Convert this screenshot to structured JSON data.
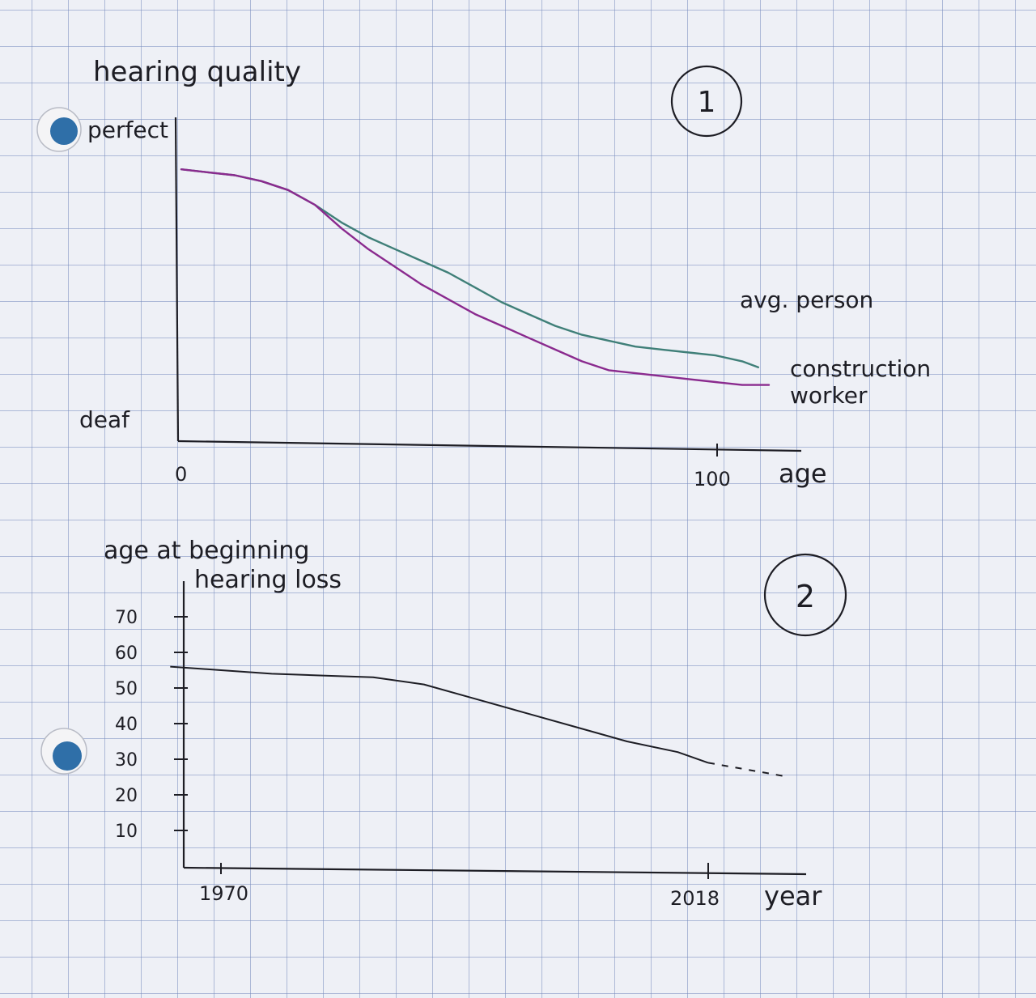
{
  "colors": {
    "avg_person": "#3f7f78",
    "construction_worker": "#8a2a8e",
    "ink": "#1d1d24",
    "hole": "#2f6fa8"
  },
  "chart_data": [
    {
      "type": "line",
      "badge": "1",
      "title": "hearing quality",
      "xlabel": "age",
      "ylabel": "hearing quality",
      "y_high_label": "perfect",
      "y_low_label": "deaf",
      "x_ticks": [
        "0",
        "100"
      ],
      "xlim": [
        0,
        110
      ],
      "ylim": [
        0,
        100
      ],
      "grid": true,
      "legend": "right",
      "series": [
        {
          "name": "avg. person",
          "color": "#3f7f78",
          "x": [
            0,
            5,
            10,
            15,
            20,
            25,
            30,
            35,
            40,
            45,
            50,
            55,
            60,
            65,
            70,
            75,
            80,
            85,
            90,
            95,
            100,
            105,
            108
          ],
          "y": [
            92,
            91,
            90,
            88,
            85,
            80,
            74,
            69,
            65,
            61,
            57,
            52,
            47,
            43,
            39,
            36,
            34,
            32,
            31,
            30,
            29,
            27,
            25
          ]
        },
        {
          "name": "construction worker",
          "color": "#8a2a8e",
          "x": [
            0,
            5,
            10,
            15,
            20,
            25,
            30,
            35,
            40,
            45,
            50,
            55,
            60,
            65,
            70,
            75,
            80,
            85,
            90,
            95,
            100,
            105,
            110
          ],
          "y": [
            92,
            91,
            90,
            88,
            85,
            80,
            72,
            65,
            59,
            53,
            48,
            43,
            39,
            35,
            31,
            27,
            24,
            23,
            22,
            21,
            20,
            19,
            19
          ]
        }
      ]
    },
    {
      "type": "line",
      "badge": "2",
      "title": "",
      "ylabel": "age at beginning hearing loss",
      "xlabel": "year",
      "x_ticks": [
        "1970",
        "2018"
      ],
      "y_ticks": [
        "10",
        "20",
        "30",
        "40",
        "50",
        "60",
        "70"
      ],
      "xlim": [
        1966,
        2026
      ],
      "ylim": [
        0,
        80
      ],
      "grid": true,
      "series": [
        {
          "name": "",
          "x": [
            1965,
            1970,
            1975,
            1980,
            1985,
            1990,
            1995,
            2000,
            2005,
            2010,
            2015,
            2018
          ],
          "y": [
            56,
            55,
            54,
            53.5,
            53,
            51,
            47,
            43,
            39,
            35,
            32,
            29
          ]
        },
        {
          "name": "",
          "style": "dashed",
          "x": [
            2018,
            2022,
            2026
          ],
          "y": [
            29,
            27,
            25
          ]
        }
      ]
    }
  ]
}
